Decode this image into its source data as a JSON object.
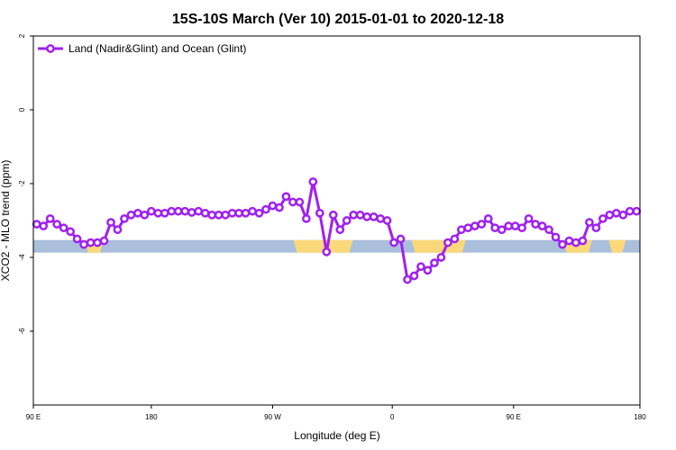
{
  "chart_data": {
    "type": "line",
    "title": "15S-10S March (Ver 10)   2015-01-01 to 2020-12-18",
    "xlabel": "Longitude (deg E)",
    "ylabel": "XCO2 - MLO trend (ppm)",
    "xlim": [
      90,
      450
    ],
    "ylim": [
      -8,
      2
    ],
    "x_ticks": [
      {
        "value": 90,
        "label": "90 E"
      },
      {
        "value": 160,
        "label": "180"
      },
      {
        "value": 232,
        "label": "90 W"
      },
      {
        "value": 303,
        "label": "0"
      },
      {
        "value": 375,
        "label": "90 E"
      },
      {
        "value": 450,
        "label": "180"
      }
    ],
    "y_ticks": [
      {
        "value": 2,
        "label": "2"
      },
      {
        "value": 0,
        "label": "0"
      },
      {
        "value": -2,
        "label": "-2"
      },
      {
        "value": -4,
        "label": "-4"
      },
      {
        "value": -6,
        "label": "-6"
      }
    ],
    "grid": false,
    "legend": "top-left",
    "series": [
      {
        "name": "Land (Nadir&Glint) and Ocean (Glint)",
        "color": "#a020f0",
        "x": [
          92,
          96,
          100,
          104,
          108,
          112,
          116,
          120,
          124,
          128,
          132,
          136,
          140,
          144,
          148,
          152,
          156,
          160,
          164,
          168,
          172,
          176,
          180,
          184,
          188,
          192,
          196,
          200,
          204,
          208,
          212,
          216,
          220,
          224,
          228,
          232,
          236,
          240,
          244,
          248,
          252,
          256,
          260,
          264,
          268,
          272,
          276,
          280,
          284,
          288,
          292,
          296,
          300,
          304,
          308,
          312,
          316,
          320,
          324,
          328,
          332,
          336,
          340,
          344,
          348,
          352,
          356,
          360,
          364,
          368,
          372,
          376,
          380,
          384,
          388,
          392,
          396,
          400,
          404,
          408,
          412,
          416,
          420,
          424,
          428,
          432,
          436,
          440,
          444,
          448
        ],
        "values": [
          -3.1,
          -3.15,
          -2.95,
          -3.1,
          -3.2,
          -3.3,
          -3.5,
          -3.65,
          -3.6,
          -3.6,
          -3.55,
          -3.05,
          -3.25,
          -2.95,
          -2.85,
          -2.8,
          -2.85,
          -2.75,
          -2.8,
          -2.8,
          -2.75,
          -2.75,
          -2.75,
          -2.78,
          -2.75,
          -2.8,
          -2.85,
          -2.85,
          -2.85,
          -2.8,
          -2.8,
          -2.8,
          -2.75,
          -2.8,
          -2.7,
          -2.6,
          -2.65,
          -2.35,
          -2.5,
          -2.5,
          -2.95,
          -1.95,
          -2.8,
          -3.85,
          -2.85,
          -3.25,
          -3.0,
          -2.85,
          -2.85,
          -2.9,
          -2.9,
          -2.95,
          -3.0,
          -3.6,
          -3.5,
          -4.6,
          -4.5,
          -4.25,
          -4.35,
          -4.15,
          -4.0,
          -3.6,
          -3.5,
          -3.25,
          -3.2,
          -3.15,
          -3.1,
          -2.95,
          -3.2,
          -3.25,
          -3.15,
          -3.15,
          -3.2,
          -2.95,
          -3.1,
          -3.15,
          -3.25,
          -3.45,
          -3.65,
          -3.55,
          -3.6,
          -3.55,
          -3.05,
          -3.2,
          -2.95,
          -2.85,
          -2.8,
          -2.85,
          -2.75,
          -2.75
        ]
      }
    ],
    "surface_bar": {
      "y": -3.7,
      "ocean_color": "#a9bfdc",
      "land_color": "#fbd97a",
      "land_segments": [
        [
          122,
          130
        ],
        [
          246,
          278
        ],
        [
          316,
          345
        ],
        [
          406,
          420
        ],
        [
          433,
          440
        ]
      ]
    }
  }
}
